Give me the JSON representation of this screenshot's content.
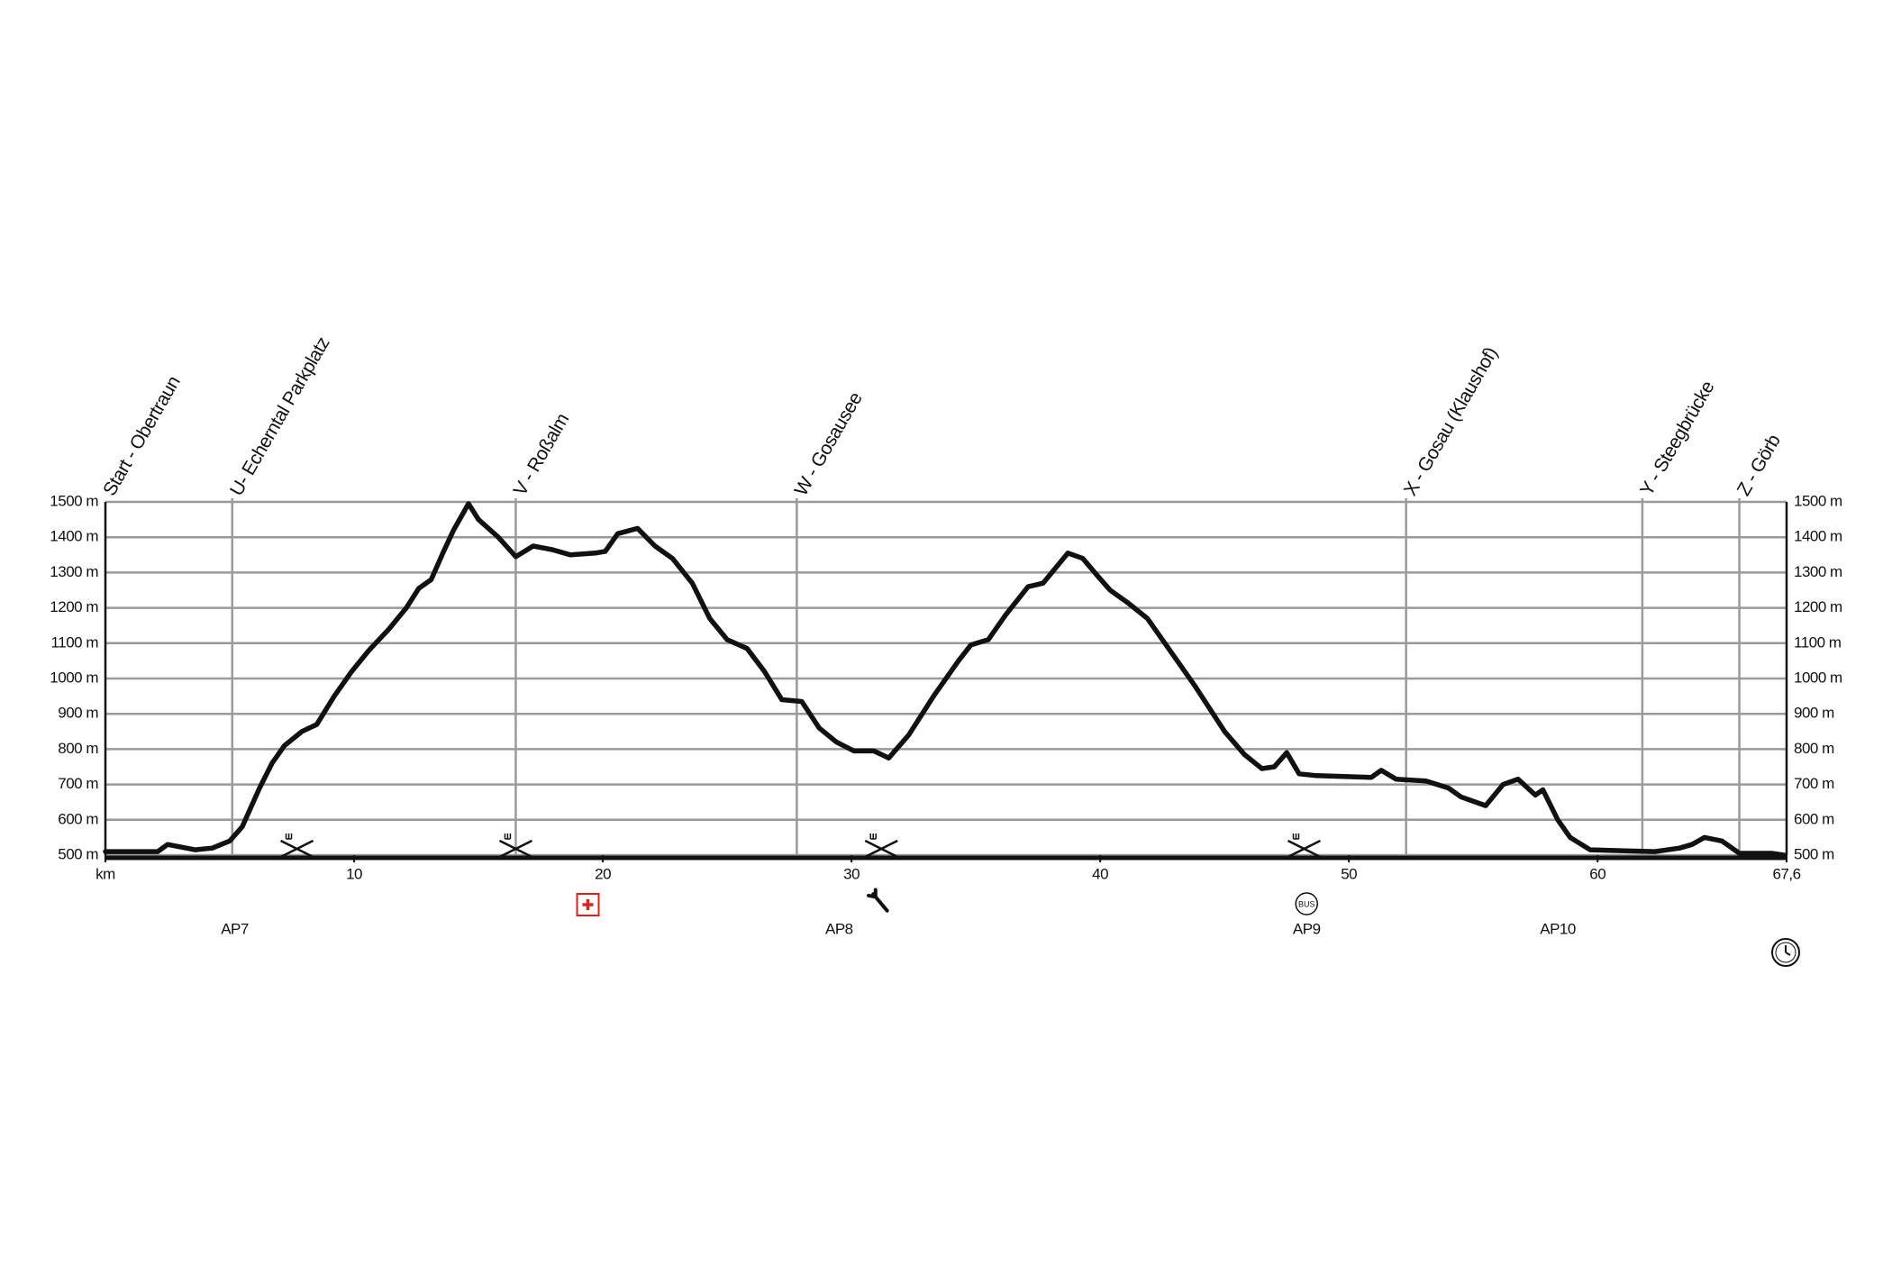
{
  "chart_data": {
    "type": "line",
    "xlim": [
      0,
      67.6
    ],
    "xticks": [
      {
        "value": 0,
        "label": "km"
      },
      10,
      20,
      30,
      40,
      50,
      60,
      {
        "value": 67.6,
        "label": "67,6"
      }
    ],
    "ylim": [
      500,
      1500
    ],
    "yticks": [
      {
        "value": 500,
        "label": "500 m"
      },
      {
        "value": 600,
        "label": "600 m"
      },
      {
        "value": 700,
        "label": "700 m"
      },
      {
        "value": 800,
        "label": "800 m"
      },
      {
        "value": 900,
        "label": "900 m"
      },
      {
        "value": 1000,
        "label": "1000 m"
      },
      {
        "value": 1100,
        "label": "1100 m"
      },
      {
        "value": 1200,
        "label": "1200 m"
      },
      {
        "value": 1300,
        "label": "1300 m"
      },
      {
        "value": 1400,
        "label": "1400 m"
      },
      {
        "value": 1500,
        "label": "1500 m"
      }
    ],
    "grid": true,
    "color": "#111111",
    "x": [
      0,
      2.1,
      2.5,
      3.6,
      4.3,
      5.0,
      5.5,
      6.2,
      6.7,
      7.2,
      7.9,
      8.5,
      9.2,
      9.9,
      10.6,
      11.4,
      12.1,
      12.6,
      13.1,
      13.6,
      14.0,
      14.6,
      15.0,
      15.8,
      16.5,
      17.2,
      17.95,
      18.7,
      19.7,
      20.1,
      20.6,
      21.4,
      22.1,
      22.8,
      23.6,
      24.3,
      25.0,
      25.8,
      26.5,
      27.2,
      28.0,
      28.7,
      29.4,
      30.1,
      30.9,
      31.5,
      32.3,
      33.3,
      34.3,
      34.8,
      35.5,
      36.2,
      37.1,
      37.7,
      38.7,
      39.3,
      39.9,
      40.4,
      41.1,
      41.9,
      42.6,
      43.8,
      45.0,
      45.8,
      46.5,
      47.0,
      47.5,
      48.0,
      48.7,
      50.9,
      51.3,
      51.9,
      53.1,
      54.0,
      54.5,
      55.5,
      56.2,
      56.8,
      57.5,
      57.8,
      58.4,
      58.9,
      59.7,
      61.1,
      62.3,
      63.3,
      63.8,
      64.3,
      65.0,
      65.7,
      67.0,
      67.5
    ],
    "values": [
      510,
      510,
      530,
      515,
      520,
      540,
      580,
      690,
      760,
      810,
      850,
      870,
      950,
      1020,
      1080,
      1140,
      1200,
      1255,
      1280,
      1360,
      1420,
      1495,
      1450,
      1400,
      1345,
      1375,
      1365,
      1350,
      1355,
      1360,
      1410,
      1425,
      1375,
      1340,
      1270,
      1170,
      1110,
      1085,
      1020,
      940,
      935,
      860,
      820,
      795,
      795,
      775,
      840,
      950,
      1050,
      1095,
      1110,
      1180,
      1260,
      1270,
      1355,
      1340,
      1290,
      1250,
      1215,
      1170,
      1100,
      980,
      850,
      785,
      745,
      750,
      790,
      730,
      725,
      720,
      740,
      715,
      710,
      690,
      665,
      640,
      700,
      715,
      670,
      685,
      600,
      550,
      515,
      512,
      510,
      520,
      530,
      550,
      540,
      505,
      505,
      500
    ],
    "waypoints": [
      {
        "label": "Start - Obertraun",
        "x": 0
      },
      {
        "label": "U- Echerntal Parkplatz",
        "x": 5.1
      },
      {
        "label": "V - Roßalm",
        "x": 16.5
      },
      {
        "label": "W - Gosausee",
        "x": 27.8
      },
      {
        "label": "X - Gosau (Klaushof)",
        "x": 52.3
      },
      {
        "label": "Y - Steegbrücke",
        "x": 61.8
      },
      {
        "label": "Z - Görb",
        "x": 65.7
      }
    ],
    "aid_stations": [
      {
        "label": "AP7",
        "x": 5.2
      },
      {
        "label": "AP8",
        "x": 29.5
      },
      {
        "label": "AP9",
        "x": 48.3
      },
      {
        "label": "AP10",
        "x": 58.4
      }
    ],
    "food_x": [
      7.7,
      16.5,
      31.2,
      48.2
    ],
    "first_aid_x": [
      19.4
    ],
    "repair_x": [
      31.2
    ],
    "bus_x": [
      48.3
    ],
    "bus_icon_text": "BUS"
  }
}
